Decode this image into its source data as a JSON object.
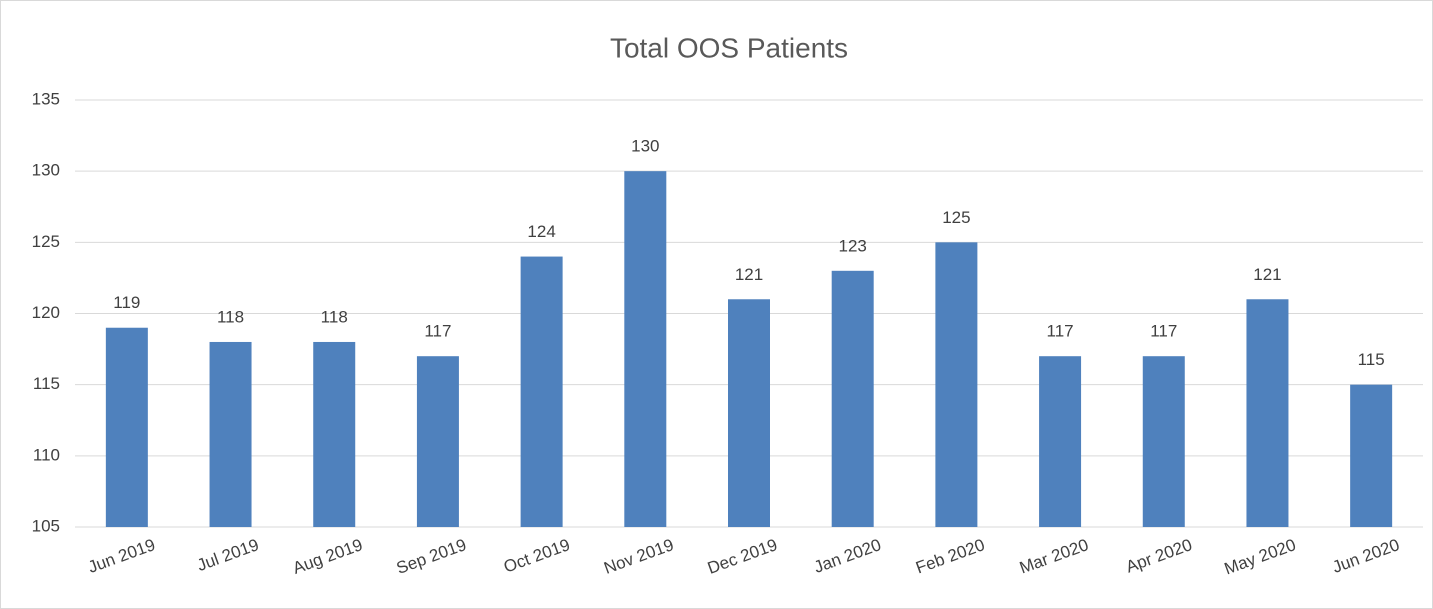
{
  "chart_data": {
    "type": "bar",
    "title": "Total OOS Patients",
    "categories": [
      "Jun 2019",
      "Jul 2019",
      "Aug 2019",
      "Sep 2019",
      "Oct 2019",
      "Nov 2019",
      "Dec 2019",
      "Jan 2020",
      "Feb 2020",
      "Mar 2020",
      "Apr 2020",
      "May 2020",
      "Jun 2020"
    ],
    "values": [
      119,
      118,
      118,
      117,
      124,
      130,
      121,
      123,
      125,
      117,
      117,
      121,
      115
    ],
    "color": "#4f81bd",
    "ylim": [
      105,
      135
    ],
    "yticks": [
      105,
      110,
      115,
      120,
      125,
      130,
      135
    ],
    "grid": true
  }
}
